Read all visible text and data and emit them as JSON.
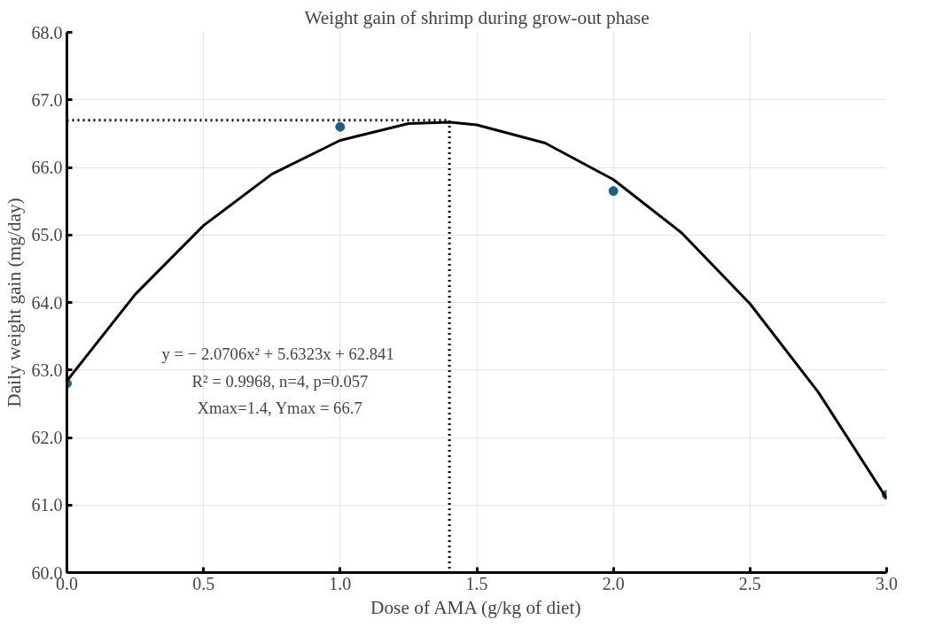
{
  "chart_data": {
    "type": "scatter",
    "title": "Weight gain of shrimp during grow-out phase",
    "xlabel": "Dose of AMA (g/kg of diet)",
    "ylabel": "Daily weight gain (mg/day)",
    "series": [
      {
        "color": "#1f5f7f",
        "marker": "circle",
        "x": [
          0,
          1,
          2,
          3
        ],
        "values": [
          62.8,
          66.6,
          65.65,
          61.15
        ]
      },
      {
        "type": "line",
        "color": "#000000",
        "line_style": "solid",
        "marker": "none",
        "x": [
          0,
          0.25,
          0.5,
          0.75,
          1.0,
          1.25,
          1.4,
          1.5,
          1.75,
          2.0,
          2.25,
          2.5,
          2.75,
          3.0
        ],
        "values": [
          62.84,
          64.12,
          65.14,
          65.9,
          66.4,
          66.65,
          66.67,
          66.63,
          66.36,
          65.82,
          65.03,
          63.98,
          62.67,
          61.1
        ]
      },
      {
        "type": "line",
        "color": "#000000",
        "line_style": "dotted",
        "marker": "none",
        "x": [
          0,
          1.4,
          1.4
        ],
        "values": [
          66.7,
          66.7,
          60
        ]
      }
    ],
    "xlim": [
      0,
      3
    ],
    "ylim": [
      60,
      68
    ],
    "xticks": [
      {
        "value": 0,
        "label": "0.0"
      },
      {
        "value": 0.5,
        "label": "0.5"
      },
      {
        "value": 1,
        "label": "1.0"
      },
      {
        "value": 1.5,
        "label": "1.5"
      },
      {
        "value": 2,
        "label": "2.0"
      },
      {
        "value": 2.5,
        "label": "2.5"
      },
      {
        "value": 3,
        "label": "3.0"
      }
    ],
    "yticks": [
      {
        "value": 60,
        "label": "60.0"
      },
      {
        "value": 61,
        "label": "61.0"
      },
      {
        "value": 62,
        "label": "62.0"
      },
      {
        "value": 63,
        "label": "63.0"
      },
      {
        "value": 64,
        "label": "64.0"
      },
      {
        "value": 65,
        "label": "65.0"
      },
      {
        "value": 66,
        "label": "66.0"
      },
      {
        "value": 67,
        "label": "67.0"
      },
      {
        "value": 68,
        "label": "68.0"
      }
    ],
    "grid": true,
    "annotations": [
      "y =  − 2.0706x² + 5.6323x + 62.841",
      "R² = 0.9968, n=4, p=0.057",
      "Xmax=1.4, Ymax = 66.7"
    ]
  }
}
